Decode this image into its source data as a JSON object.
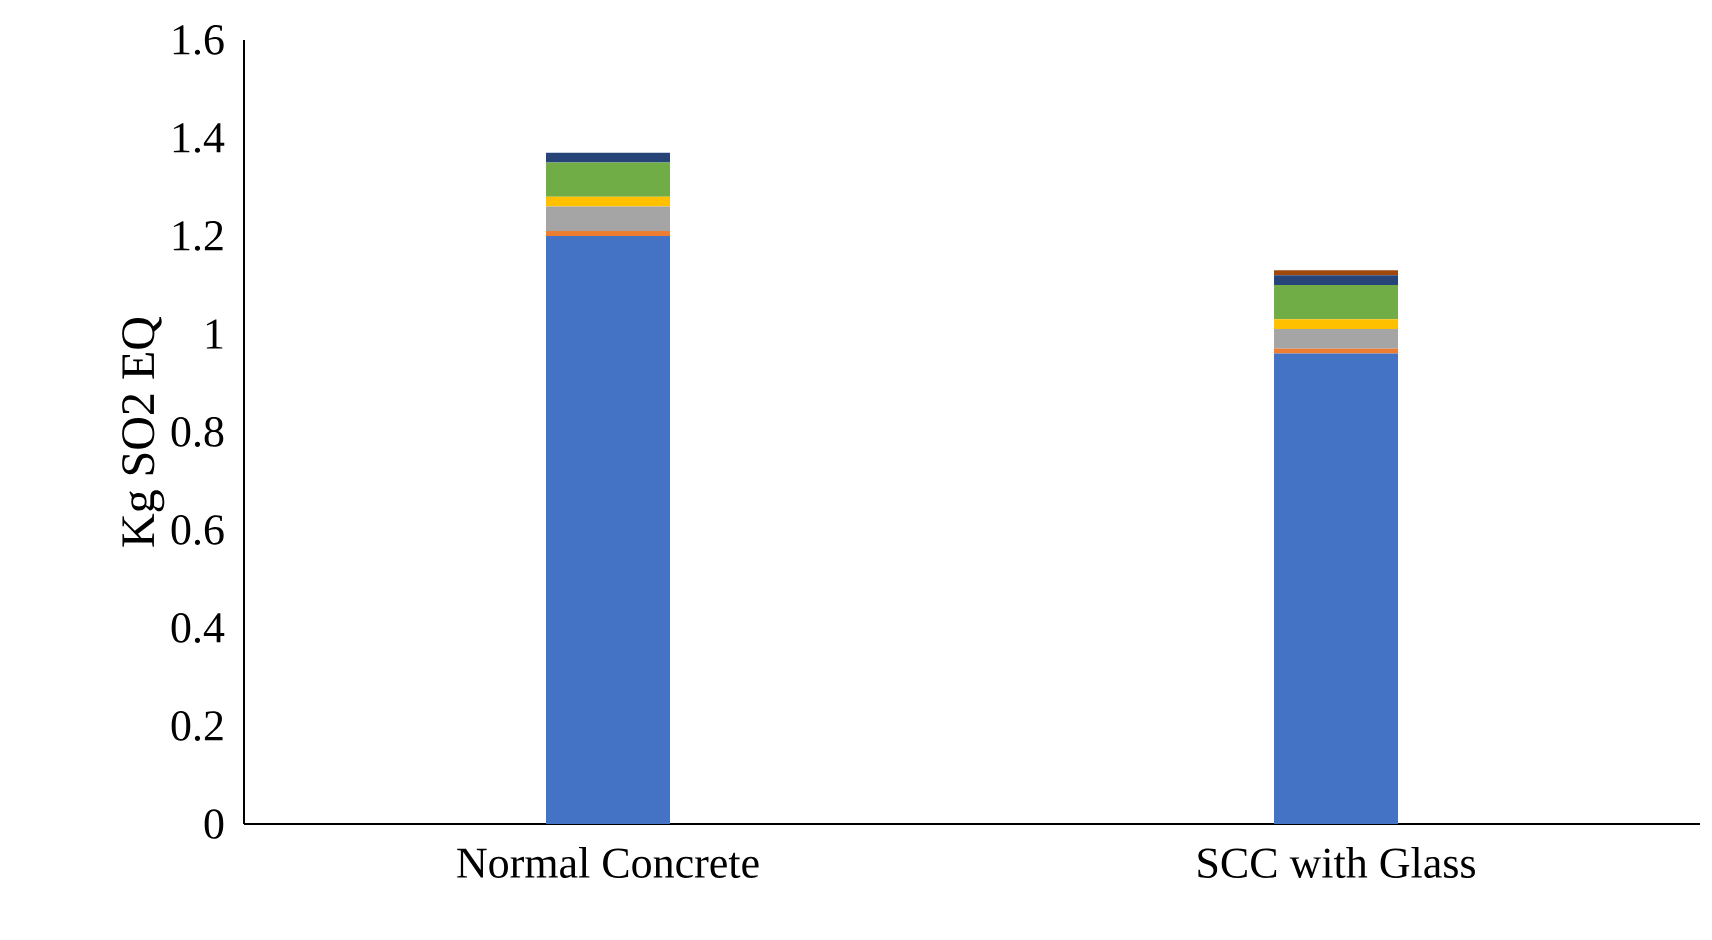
{
  "chart_data": {
    "type": "bar",
    "stacked": true,
    "ylabel": "Kg SO2  EQ",
    "categories": [
      "Normal Concrete",
      "SCC with Glass"
    ],
    "ylim": [
      0,
      1.6
    ],
    "yticks": [
      0,
      0.2,
      0.4,
      0.6,
      0.8,
      1,
      1.2,
      1.4,
      1.6
    ],
    "series": [
      {
        "color": "#4472c4",
        "values": [
          1.2,
          0.96
        ]
      },
      {
        "color": "#ed7d31",
        "values": [
          0.01,
          0.01
        ]
      },
      {
        "color": "#a5a5a5",
        "values": [
          0.05,
          0.04
        ]
      },
      {
        "color": "#ffc000",
        "values": [
          0.02,
          0.02
        ]
      },
      {
        "color": "#70ad47",
        "values": [
          0.07,
          0.07
        ]
      },
      {
        "color": "#264478",
        "values": [
          0.02,
          0.02
        ]
      },
      {
        "color": "#9e480e",
        "values": [
          0,
          0.01
        ]
      }
    ]
  }
}
